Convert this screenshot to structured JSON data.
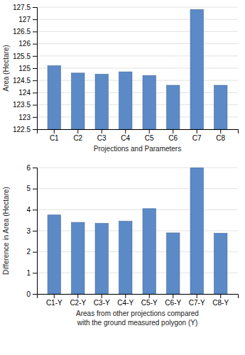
{
  "chart_data": [
    {
      "type": "bar",
      "categories": [
        "C1",
        "C2",
        "C3",
        "C4",
        "C5",
        "C6",
        "C7",
        "C8"
      ],
      "values": [
        125.1,
        124.8,
        124.75,
        124.85,
        124.7,
        124.3,
        127.4,
        124.3
      ],
      "ylabel": "Area (Hectare)",
      "xlabel": "Projections and Parameters",
      "ylim": [
        122.5,
        127.5
      ],
      "yticks": [
        122.5,
        123,
        123.5,
        124,
        124.5,
        125,
        125.5,
        126,
        126.5,
        127,
        127.5
      ],
      "color": "#5b8ac7",
      "grid": true
    },
    {
      "type": "bar",
      "categories": [
        "C1-Y",
        "C2-Y",
        "C3-Y",
        "C4-Y",
        "C5-Y",
        "C6-Y",
        "C7-Y",
        "C8-Y"
      ],
      "values": [
        3.75,
        3.4,
        3.35,
        3.45,
        4.05,
        2.9,
        6.0,
        2.88
      ],
      "ylabel": "Difference in Area (Hectare)",
      "xlabel": "Areas from other projections compared\nwith the ground measured polygon (Y)",
      "ylim": [
        0,
        6
      ],
      "yticks": [
        0,
        1,
        2,
        3,
        4,
        5,
        6
      ],
      "color": "#5b8ac7",
      "grid": true
    }
  ]
}
